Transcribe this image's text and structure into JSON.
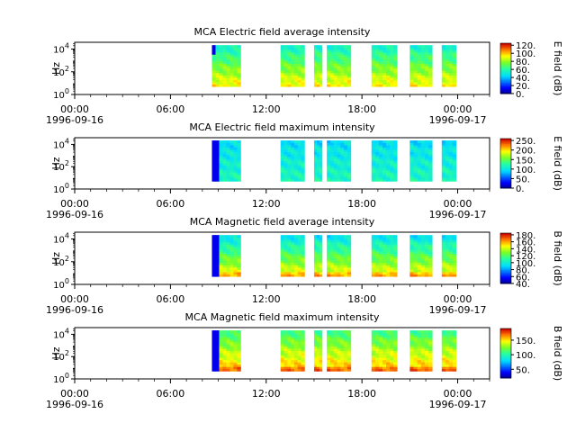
{
  "chart_data": [
    {
      "type": "heatmap",
      "title": "MCA  Electric field average intensity",
      "ylabel": "Hz",
      "colorbar_label": "E field (dB)",
      "colorbar_ticks": [
        "0.",
        "20.",
        "40.",
        "60.",
        "80.",
        "100.",
        "120."
      ],
      "colorbar_range": [
        0,
        125
      ],
      "x_tick_labels": [
        "00:00",
        "06:00",
        "12:00",
        "18:00",
        "00:00"
      ],
      "x_date_labels": [
        "1996-09-16",
        "1996-09-17"
      ],
      "y_tick_labels": [
        "10^0",
        "10^2",
        "10^4"
      ],
      "ylim_log10": [
        0,
        4.6
      ],
      "xlim_hours": [
        0,
        26
      ],
      "data_interval_hours": [
        [
          8.6,
          10.4
        ],
        [
          12.9,
          14.4
        ],
        [
          15.0,
          15.5
        ],
        [
          15.8,
          17.3
        ],
        [
          18.6,
          20.2
        ],
        [
          21.0,
          22.4
        ],
        [
          23.0,
          23.9
        ]
      ],
      "freq_range_log10": [
        0.7,
        4.35
      ],
      "intensity_profile": {
        "kind": "avg-e",
        "low_freq_level_db": 95,
        "high_freq_level_db": 55
      }
    },
    {
      "type": "heatmap",
      "title": "MCA  Electric field maximum intensity",
      "ylabel": "Hz",
      "colorbar_label": "E field (dB)",
      "colorbar_ticks": [
        "0.",
        "50.",
        "100.",
        "150.",
        "200.",
        "250."
      ],
      "colorbar_range": [
        0,
        260
      ],
      "x_tick_labels": [
        "00:00",
        "06:00",
        "12:00",
        "18:00",
        "00:00"
      ],
      "x_date_labels": [
        "1996-09-16",
        "1996-09-17"
      ],
      "y_tick_labels": [
        "10^0",
        "10^2",
        "10^4"
      ],
      "ylim_log10": [
        0,
        4.6
      ],
      "xlim_hours": [
        0,
        26
      ],
      "data_interval_hours": [
        [
          8.6,
          10.4
        ],
        [
          12.9,
          14.4
        ],
        [
          15.0,
          15.5
        ],
        [
          15.8,
          17.3
        ],
        [
          18.6,
          20.2
        ],
        [
          21.0,
          22.4
        ],
        [
          23.0,
          23.9
        ]
      ],
      "freq_range_log10": [
        0.7,
        4.35
      ],
      "intensity_profile": {
        "kind": "max-e",
        "low_freq_level_db": 120,
        "high_freq_level_db": 95
      }
    },
    {
      "type": "heatmap",
      "title": "MCA  Magnetic field average intensity",
      "ylabel": "Hz",
      "colorbar_label": "B field (dB)",
      "colorbar_ticks": [
        "40.",
        "60.",
        "80.",
        "100.",
        "120.",
        "140.",
        "160.",
        "180."
      ],
      "colorbar_range": [
        40,
        185
      ],
      "x_tick_labels": [
        "00:00",
        "06:00",
        "12:00",
        "18:00",
        "00:00"
      ],
      "x_date_labels": [
        "1996-09-16",
        "1996-09-17"
      ],
      "y_tick_labels": [
        "10^0",
        "10^2",
        "10^4"
      ],
      "ylim_log10": [
        0,
        4.6
      ],
      "xlim_hours": [
        0,
        26
      ],
      "data_interval_hours": [
        [
          8.6,
          10.4
        ],
        [
          12.9,
          14.4
        ],
        [
          15.0,
          15.5
        ],
        [
          15.8,
          17.3
        ],
        [
          18.6,
          20.2
        ],
        [
          21.0,
          22.4
        ],
        [
          23.0,
          23.9
        ]
      ],
      "freq_range_log10": [
        0.7,
        4.35
      ],
      "intensity_profile": {
        "kind": "avg-b",
        "low_freq_level_db": 150,
        "high_freq_level_db": 95
      }
    },
    {
      "type": "heatmap",
      "title": "MCA  Magnetic field maximum intensity",
      "ylabel": "Hz",
      "colorbar_label": "B field (dB)",
      "colorbar_ticks": [
        "50.",
        "100.",
        "150."
      ],
      "colorbar_range": [
        20,
        190
      ],
      "x_tick_labels": [
        "00:00",
        "06:00",
        "12:00",
        "18:00",
        "00:00"
      ],
      "x_date_labels": [
        "1996-09-16",
        "1996-09-17"
      ],
      "y_tick_labels": [
        "10^0",
        "10^2",
        "10^4"
      ],
      "ylim_log10": [
        0,
        4.6
      ],
      "xlim_hours": [
        0,
        26
      ],
      "data_interval_hours": [
        [
          8.6,
          10.4
        ],
        [
          12.9,
          14.4
        ],
        [
          15.0,
          15.5
        ],
        [
          15.8,
          17.3
        ],
        [
          18.6,
          20.2
        ],
        [
          21.0,
          22.4
        ],
        [
          23.0,
          23.9
        ]
      ],
      "freq_range_log10": [
        0.7,
        4.35
      ],
      "intensity_profile": {
        "kind": "max-b",
        "low_freq_level_db": 160,
        "high_freq_level_db": 110
      }
    }
  ]
}
